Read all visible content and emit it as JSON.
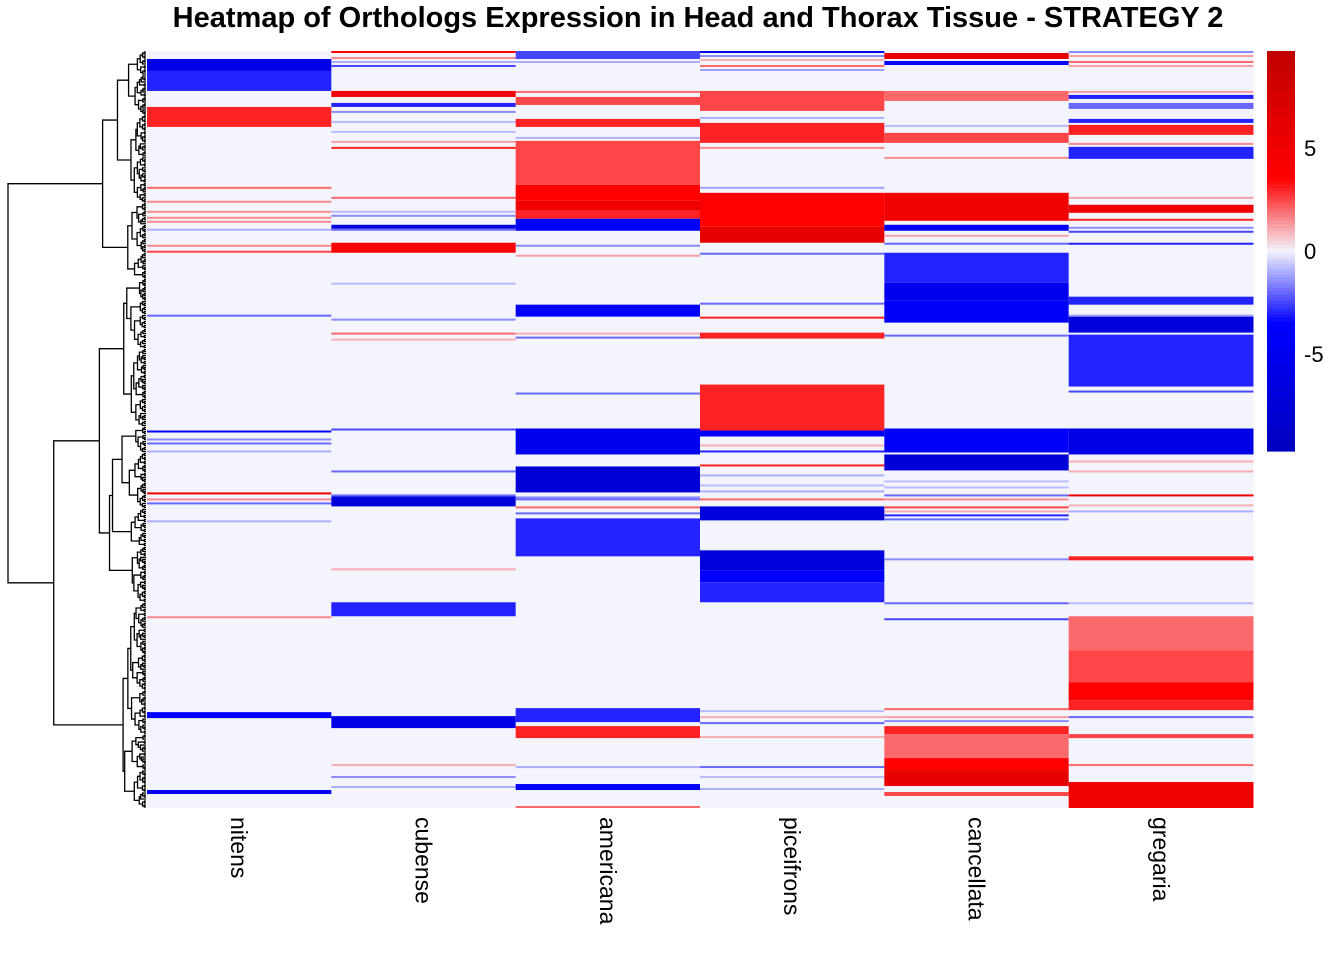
{
  "chart_data": {
    "type": "heatmap",
    "title": "Heatmap of Orthologs Expression in Head and Thorax Tissue - STRATEGY 2",
    "columns": [
      "nitens",
      "cubense",
      "americana",
      "piceifrons",
      "cancellata",
      "gregaria"
    ],
    "row_count": 379,
    "row_dendrogram": true,
    "background_value": 0,
    "color_scale": {
      "low": "#0000C0",
      "mid_low": "#0000FF",
      "zero": "#F4F4FC",
      "mid_high": "#FF0000",
      "high": "#C00000",
      "range": [
        -9.7,
        9.7
      ],
      "ticks": [
        5,
        0,
        -5
      ],
      "tick_labels": [
        "5",
        "0",
        "-5"
      ]
    },
    "bands_format": "[start_row, end_row, value]",
    "bands": {
      "nitens": [
        [
          4,
          10,
          -6
        ],
        [
          10,
          20,
          -3
        ],
        [
          28,
          38,
          3
        ],
        [
          68,
          69,
          2
        ],
        [
          75,
          76,
          1.5
        ],
        [
          80,
          81,
          1.5
        ],
        [
          83,
          84,
          1.5
        ],
        [
          85,
          86,
          1.5
        ],
        [
          89,
          90,
          -1
        ],
        [
          97,
          98,
          1.5
        ],
        [
          100,
          101,
          2.5
        ],
        [
          132,
          133,
          -2
        ],
        [
          190,
          191,
          -4
        ],
        [
          194,
          195,
          -1.5
        ],
        [
          196,
          197,
          -2
        ],
        [
          200,
          201,
          -1
        ],
        [
          221,
          222,
          5
        ],
        [
          224,
          225,
          1.5
        ],
        [
          226,
          227,
          -2
        ],
        [
          235,
          236,
          -1
        ],
        [
          283,
          284,
          1.5
        ],
        [
          331,
          334,
          -4
        ],
        [
          370,
          372,
          -4
        ]
      ],
      "cubense": [
        [
          0,
          1,
          4
        ],
        [
          3,
          4,
          1.5
        ],
        [
          5,
          6,
          -1
        ],
        [
          7,
          8,
          -2.5
        ],
        [
          20,
          23,
          5
        ],
        [
          26,
          28,
          -3
        ],
        [
          30,
          31,
          -1.5
        ],
        [
          35,
          36,
          -0.8
        ],
        [
          40,
          41,
          -0.8
        ],
        [
          45,
          46,
          1.2
        ],
        [
          48,
          49,
          3
        ],
        [
          73,
          74,
          2
        ],
        [
          80,
          81,
          -0.8
        ],
        [
          82,
          83,
          -1.5
        ],
        [
          87,
          89,
          -7
        ],
        [
          89,
          90,
          -2
        ],
        [
          96,
          101,
          4
        ],
        [
          116,
          117,
          -0.8
        ],
        [
          134,
          135,
          -1.5
        ],
        [
          141,
          142,
          2
        ],
        [
          144,
          145,
          1
        ],
        [
          189,
          190,
          -2.5
        ],
        [
          210,
          211,
          -2
        ],
        [
          222,
          223,
          -2
        ],
        [
          223,
          228,
          -7
        ],
        [
          259,
          260,
          1
        ],
        [
          276,
          283,
          -3
        ],
        [
          333,
          339,
          -6
        ],
        [
          357,
          358,
          1
        ],
        [
          363,
          364,
          -1.5
        ],
        [
          368,
          369,
          -1
        ]
      ],
      "americana": [
        [
          0,
          4,
          -2.5
        ],
        [
          5,
          6,
          -1
        ],
        [
          20,
          21,
          2
        ],
        [
          23,
          27,
          2.5
        ],
        [
          34,
          38,
          3
        ],
        [
          43,
          44,
          -1
        ],
        [
          45,
          67,
          2.5
        ],
        [
          67,
          75,
          3.5
        ],
        [
          75,
          80,
          5
        ],
        [
          80,
          84,
          3
        ],
        [
          84,
          90,
          -4
        ],
        [
          97,
          98,
          -1.5
        ],
        [
          102,
          103,
          1.2
        ],
        [
          127,
          133,
          -4
        ],
        [
          141,
          142,
          1
        ],
        [
          143,
          144,
          -2
        ],
        [
          171,
          172,
          -2
        ],
        [
          189,
          202,
          -5
        ],
        [
          208,
          221,
          -7.5
        ],
        [
          223,
          224,
          -1.5
        ],
        [
          224,
          225,
          -2
        ],
        [
          228,
          229,
          2
        ],
        [
          231,
          232,
          -2
        ],
        [
          234,
          253,
          -3
        ],
        [
          329,
          336,
          -3
        ],
        [
          338,
          344,
          3
        ],
        [
          358,
          359,
          -1
        ],
        [
          367,
          370,
          -4
        ],
        [
          378,
          379,
          2
        ]
      ],
      "piceifrons": [
        [
          0,
          1,
          -6
        ],
        [
          2,
          3,
          -1.5
        ],
        [
          4,
          5,
          1
        ],
        [
          7,
          8,
          2
        ],
        [
          9,
          10,
          -1.2
        ],
        [
          20,
          30,
          2.5
        ],
        [
          33,
          34,
          -1
        ],
        [
          36,
          46,
          3
        ],
        [
          48,
          49,
          1.5
        ],
        [
          68,
          69,
          -1.2
        ],
        [
          71,
          88,
          3.5
        ],
        [
          88,
          96,
          6
        ],
        [
          101,
          102,
          -2
        ],
        [
          126,
          127,
          -2
        ],
        [
          133,
          134,
          3
        ],
        [
          141,
          144,
          3
        ],
        [
          167,
          190,
          3
        ],
        [
          190,
          193,
          -4
        ],
        [
          197,
          198,
          1
        ],
        [
          200,
          201,
          -3
        ],
        [
          207,
          208,
          3
        ],
        [
          212,
          213,
          -1
        ],
        [
          217,
          218,
          -0.8
        ],
        [
          220,
          221,
          -1
        ],
        [
          224,
          225,
          2
        ],
        [
          228,
          235,
          -7
        ],
        [
          250,
          260,
          -7
        ],
        [
          260,
          266,
          -4
        ],
        [
          266,
          276,
          -3
        ],
        [
          330,
          331,
          -0.8
        ],
        [
          333,
          334,
          1
        ],
        [
          336,
          337,
          -2
        ],
        [
          343,
          344,
          1
        ],
        [
          358,
          359,
          -2
        ],
        [
          363,
          364,
          -0.8
        ],
        [
          369,
          370,
          -1
        ]
      ],
      "cancellata": [
        [
          1,
          4,
          6
        ],
        [
          5,
          7,
          -4
        ],
        [
          20,
          25,
          2
        ],
        [
          37,
          38,
          -0.8
        ],
        [
          41,
          46,
          2.5
        ],
        [
          53,
          54,
          1.5
        ],
        [
          71,
          85,
          5
        ],
        [
          87,
          90,
          -5
        ],
        [
          92,
          93,
          1.2
        ],
        [
          96,
          97,
          -2
        ],
        [
          101,
          116,
          -3
        ],
        [
          116,
          125,
          -5
        ],
        [
          125,
          136,
          -4
        ],
        [
          142,
          143,
          -2
        ],
        [
          189,
          201,
          -4
        ],
        [
          202,
          210,
          -7.5
        ],
        [
          215,
          216,
          -0.8
        ],
        [
          218,
          219,
          -0.8
        ],
        [
          222,
          223,
          -2
        ],
        [
          224,
          225,
          1.5
        ],
        [
          228,
          229,
          2.5
        ],
        [
          230,
          231,
          1
        ],
        [
          232,
          233,
          -3
        ],
        [
          234,
          235,
          -2
        ],
        [
          254,
          255,
          -1.5
        ],
        [
          276,
          277,
          -2
        ],
        [
          284,
          285,
          -2.5
        ],
        [
          329,
          330,
          2
        ],
        [
          333,
          334,
          1.2
        ],
        [
          335,
          336,
          -1.5
        ],
        [
          338,
          342,
          3
        ],
        [
          342,
          354,
          2
        ],
        [
          354,
          360,
          3.5
        ],
        [
          360,
          368,
          6
        ],
        [
          371,
          373,
          2.5
        ]
      ],
      "gregaria": [
        [
          0,
          1,
          -1.5
        ],
        [
          2,
          3,
          1.2
        ],
        [
          5,
          6,
          2
        ],
        [
          7,
          8,
          1.2
        ],
        [
          20,
          21,
          1.2
        ],
        [
          22,
          24,
          -3
        ],
        [
          26,
          29,
          -2
        ],
        [
          34,
          36,
          -3
        ],
        [
          37,
          42,
          3
        ],
        [
          46,
          47,
          1.5
        ],
        [
          48,
          54,
          -3
        ],
        [
          73,
          74,
          1.2
        ],
        [
          77,
          81,
          5
        ],
        [
          84,
          85,
          3
        ],
        [
          88,
          89,
          -1.5
        ],
        [
          90,
          91,
          -2.5
        ],
        [
          96,
          97,
          -3
        ],
        [
          123,
          127,
          -3
        ],
        [
          132,
          133,
          -1.2
        ],
        [
          133,
          141,
          -7
        ],
        [
          142,
          168,
          -3
        ],
        [
          170,
          171,
          -2.5
        ],
        [
          189,
          202,
          -6
        ],
        [
          205,
          206,
          1
        ],
        [
          210,
          211,
          1
        ],
        [
          222,
          223,
          5
        ],
        [
          227,
          228,
          1
        ],
        [
          230,
          231,
          -1
        ],
        [
          253,
          255,
          3
        ],
        [
          276,
          277,
          -0.8
        ],
        [
          283,
          300,
          2
        ],
        [
          300,
          316,
          2.5
        ],
        [
          316,
          325,
          3.5
        ],
        [
          325,
          330,
          3
        ],
        [
          333,
          334,
          -2
        ],
        [
          342,
          344,
          2.5
        ],
        [
          357,
          358,
          2
        ],
        [
          366,
          379,
          5
        ]
      ]
    }
  }
}
